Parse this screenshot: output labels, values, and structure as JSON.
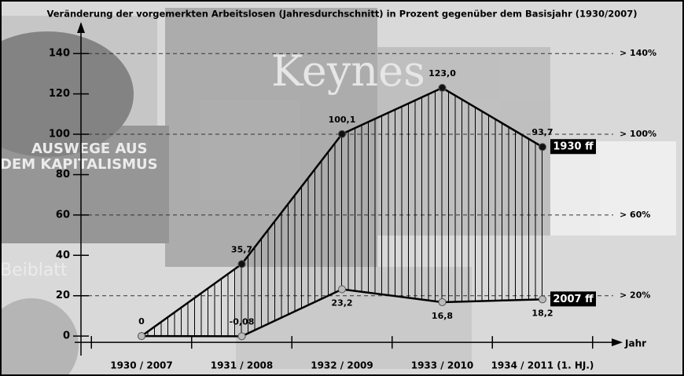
{
  "chart_data": {
    "type": "line",
    "title": "Veränderung der vorgemerkten Arbeitslosen (Jahresdurchschnitt) in Prozent gegenüber dem Basisjahr (1930/2007)",
    "categories": [
      "1930 / 2007",
      "1931 / 2008",
      "1932 / 2009",
      "1933 / 2010",
      "1934 / 2011 (1. HJ.)"
    ],
    "x_label": "Jahr",
    "series": [
      {
        "name": "1930 ff",
        "color": "#111111",
        "values": [
          0,
          35.7,
          100.1,
          123.0,
          93.7
        ],
        "value_labels": [
          "0",
          "35,7",
          "100,1",
          "123,0",
          "93,7"
        ]
      },
      {
        "name": "2007 ff",
        "color": "#bbbbbb",
        "values": [
          0,
          -0.08,
          23.2,
          16.8,
          18.2
        ],
        "value_labels": [
          null,
          "-0,08",
          "23,2",
          "16,8",
          "18,2"
        ]
      }
    ],
    "ylim": [
      -5,
      150
    ],
    "yticks": [
      0,
      20,
      40,
      60,
      80,
      100,
      120,
      140
    ],
    "reference_lines": [
      {
        "value": 140,
        "label": "> 140%"
      },
      {
        "value": 100,
        "label": "> 100%"
      },
      {
        "value": 60,
        "label": "> 60%"
      },
      {
        "value": 20,
        "label": "> 20%"
      }
    ],
    "hatch": true
  }
}
